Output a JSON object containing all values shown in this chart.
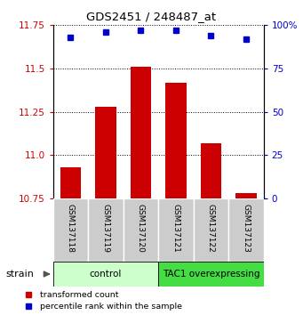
{
  "title": "GDS2451 / 248487_at",
  "samples": [
    "GSM137118",
    "GSM137119",
    "GSM137120",
    "GSM137121",
    "GSM137122",
    "GSM137123"
  ],
  "red_values": [
    10.93,
    11.28,
    11.51,
    11.42,
    11.07,
    10.78
  ],
  "blue_values": [
    93,
    96,
    97,
    97,
    94,
    92
  ],
  "ylim_left": [
    10.75,
    11.75
  ],
  "ylim_right": [
    0,
    100
  ],
  "yticks_left": [
    10.75,
    11.0,
    11.25,
    11.5,
    11.75
  ],
  "yticks_right": [
    0,
    25,
    50,
    75,
    100
  ],
  "bar_color": "#cc0000",
  "dot_color": "#0000cc",
  "bar_base": 10.75,
  "groups": [
    {
      "label": "control",
      "start": 0,
      "end": 3,
      "color": "#ccffcc"
    },
    {
      "label": "TAC1 overexpressing",
      "start": 3,
      "end": 6,
      "color": "#44dd44"
    }
  ],
  "group_label": "strain",
  "legend_red": "transformed count",
  "legend_blue": "percentile rank within the sample",
  "bar_width": 0.6,
  "left_color": "#cc0000",
  "right_color": "#0000cc",
  "sample_bg_color": "#cccccc",
  "sample_bg_edge": "#ffffff"
}
